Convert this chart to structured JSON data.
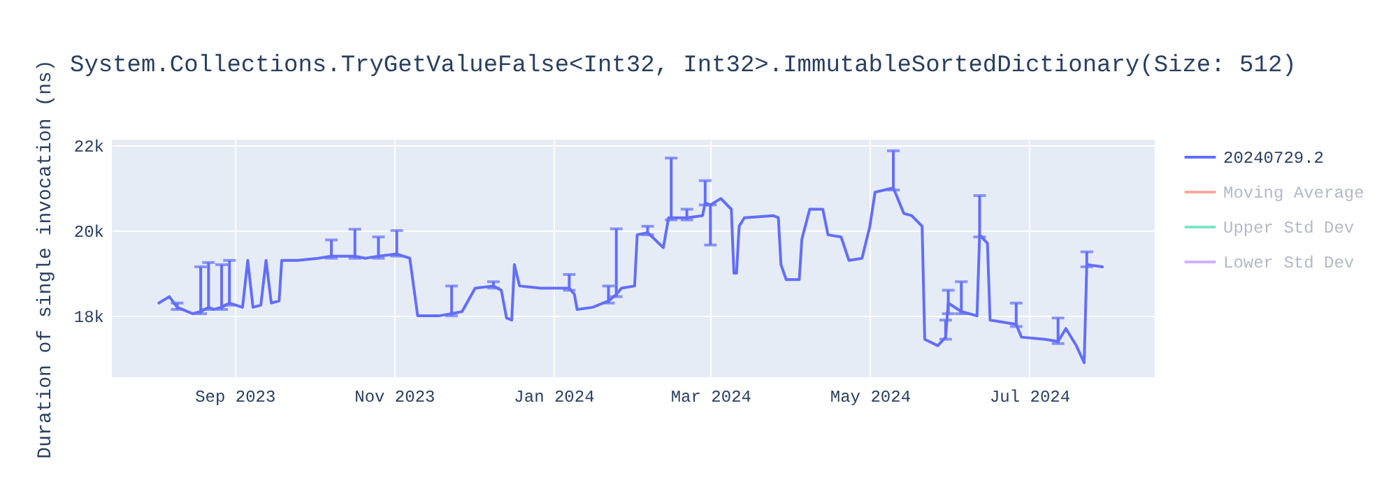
{
  "chart_data": {
    "type": "line",
    "title": "System.Collections.TryGetValueFalse<Int32, Int32>.ImmutableSortedDictionary(Size: 512)",
    "ylabel": "Duration of single invocation (ns)",
    "x": [
      "2023-08-03",
      "2023-08-07",
      "2023-08-10",
      "2023-08-16",
      "2023-08-19",
      "2023-08-22",
      "2023-08-24",
      "2023-08-27",
      "2023-08-30",
      "2023-09-04",
      "2023-09-06",
      "2023-09-08",
      "2023-09-11",
      "2023-09-13",
      "2023-09-15",
      "2023-09-18",
      "2023-09-19",
      "2023-09-25",
      "2023-10-03",
      "2023-10-08",
      "2023-10-11",
      "2023-10-17",
      "2023-10-21",
      "2023-10-26",
      "2023-11-02",
      "2023-11-07",
      "2023-11-10",
      "2023-11-18",
      "2023-11-23",
      "2023-11-27",
      "2023-12-02",
      "2023-12-09",
      "2023-12-12",
      "2023-12-14",
      "2023-12-16",
      "2023-12-17",
      "2023-12-19",
      "2023-12-27",
      "2024-01-03",
      "2024-01-07",
      "2024-01-09",
      "2024-01-10",
      "2024-01-16",
      "2024-01-22",
      "2024-01-25",
      "2024-01-27",
      "2024-02-01",
      "2024-02-02",
      "2024-02-06",
      "2024-02-12",
      "2024-02-14",
      "2024-02-15",
      "2024-02-21",
      "2024-02-27",
      "2024-02-28",
      "2024-03-01",
      "2024-03-05",
      "2024-03-09",
      "2024-03-10",
      "2024-03-11",
      "2024-03-12",
      "2024-03-14",
      "2024-03-25",
      "2024-03-27",
      "2024-03-28",
      "2024-03-30",
      "2024-04-04",
      "2024-04-05",
      "2024-04-08",
      "2024-04-13",
      "2024-04-15",
      "2024-04-20",
      "2024-04-23",
      "2024-04-28",
      "2024-05-01",
      "2024-05-03",
      "2024-05-10",
      "2024-05-14",
      "2024-05-17",
      "2024-05-21",
      "2024-05-22",
      "2024-05-27",
      "2024-05-30",
      "2024-05-31",
      "2024-06-05",
      "2024-06-11",
      "2024-06-12",
      "2024-06-15",
      "2024-06-16",
      "2024-06-21",
      "2024-06-26",
      "2024-06-28",
      "2024-07-07",
      "2024-07-12",
      "2024-07-15",
      "2024-07-19",
      "2024-07-22",
      "2024-07-23",
      "2024-07-29"
    ],
    "series": [
      {
        "name": "20240729.2",
        "color": "#636efa",
        "values": [
          18300,
          18450,
          18200,
          18050,
          18100,
          18200,
          18150,
          18200,
          18300,
          18200,
          19300,
          18200,
          18250,
          19300,
          18300,
          18350,
          19300,
          19300,
          19350,
          19400,
          19400,
          19400,
          19350,
          19400,
          19450,
          19350,
          18000,
          18000,
          18050,
          18100,
          18650,
          18700,
          18600,
          17950,
          17900,
          19200,
          18700,
          18650,
          18650,
          18650,
          18500,
          18150,
          18200,
          18350,
          18500,
          18650,
          18700,
          19900,
          19950,
          19600,
          20300,
          20300,
          20300,
          20350,
          20650,
          20600,
          20750,
          20500,
          19000,
          19000,
          20100,
          20300,
          20350,
          20300,
          19200,
          18850,
          18850,
          19800,
          20500,
          20500,
          19900,
          19850,
          19300,
          19350,
          20100,
          20900,
          21000,
          20400,
          20350,
          20100,
          17450,
          17300,
          17500,
          18300,
          18100,
          18000,
          19900,
          19700,
          17900,
          17850,
          17800,
          17500,
          17450,
          17400,
          17700,
          17300,
          16900,
          19200,
          19150
        ],
        "errors": [
          null,
          null,
          [
            18150,
            18300
          ],
          null,
          [
            18050,
            19150
          ],
          [
            18150,
            19250
          ],
          null,
          [
            18150,
            19200
          ],
          [
            18250,
            19300
          ],
          null,
          null,
          null,
          null,
          null,
          null,
          null,
          null,
          null,
          null,
          [
            19350,
            19780
          ],
          null,
          [
            19350,
            20030
          ],
          null,
          [
            19350,
            19850
          ],
          [
            19400,
            20000
          ],
          null,
          null,
          null,
          [
            18000,
            18700
          ],
          null,
          null,
          [
            18650,
            18800
          ],
          null,
          null,
          null,
          null,
          null,
          null,
          null,
          [
            18600,
            18970
          ],
          null,
          null,
          null,
          [
            18300,
            18700
          ],
          [
            18450,
            20040
          ],
          null,
          null,
          null,
          [
            19900,
            20100
          ],
          null,
          null,
          [
            20250,
            21700
          ],
          [
            20250,
            20500
          ],
          null,
          [
            20600,
            21170
          ],
          [
            19660,
            20600
          ],
          null,
          null,
          null,
          null,
          null,
          null,
          null,
          null,
          null,
          null,
          null,
          null,
          null,
          null,
          null,
          null,
          null,
          null,
          null,
          null,
          [
            20950,
            21870
          ],
          null,
          null,
          null,
          null,
          null,
          [
            17450,
            17900
          ],
          [
            18050,
            18600
          ],
          [
            18050,
            18800
          ],
          null,
          [
            19850,
            20820
          ],
          null,
          null,
          null,
          [
            17750,
            18300
          ],
          null,
          null,
          [
            17350,
            17950
          ],
          null,
          null,
          null,
          [
            19150,
            19500
          ],
          null
        ]
      },
      {
        "name": "Moving Average",
        "color": "#ef553b",
        "values": [
          null,
          null,
          null,
          null,
          null,
          null,
          null,
          null,
          null,
          null,
          null,
          null,
          null,
          null,
          null,
          null,
          null,
          null,
          null,
          null,
          null,
          null,
          null,
          null,
          null,
          null,
          null,
          null,
          null,
          null,
          null,
          null,
          null,
          null,
          null,
          null,
          null,
          null,
          null,
          null,
          null,
          null,
          null,
          null,
          null,
          null,
          null,
          null,
          null,
          null,
          null,
          null,
          null,
          null,
          null,
          null,
          null,
          null,
          null,
          null,
          null,
          null,
          null,
          null,
          null,
          null,
          null,
          null,
          null,
          null,
          null,
          null,
          null,
          null,
          null,
          null,
          null,
          null,
          null,
          null,
          null,
          null,
          null,
          null,
          null,
          null,
          null,
          null,
          null,
          null,
          null,
          null,
          null,
          null,
          null,
          null,
          null,
          null,
          null
        ]
      },
      {
        "name": "Upper Std Dev",
        "color": "#00cc96",
        "values": [
          null,
          null,
          null,
          null,
          null,
          null,
          null,
          null,
          null,
          null,
          null,
          null,
          null,
          null,
          null,
          null,
          null,
          null,
          null,
          null,
          null,
          null,
          null,
          null,
          null,
          null,
          null,
          null,
          null,
          null,
          null,
          null,
          null,
          null,
          null,
          null,
          null,
          null,
          null,
          null,
          null,
          null,
          null,
          null,
          null,
          null,
          null,
          null,
          null,
          null,
          null,
          null,
          null,
          null,
          null,
          null,
          null,
          null,
          null,
          null,
          null,
          null,
          null,
          null,
          null,
          null,
          null,
          null,
          null,
          null,
          null,
          null,
          null,
          null,
          null,
          null,
          null,
          null,
          null,
          null,
          null,
          null,
          null,
          null,
          null,
          null,
          null,
          null,
          null,
          null,
          null,
          null,
          null,
          null,
          null,
          null,
          null,
          null,
          null
        ]
      },
      {
        "name": "Lower Std Dev",
        "color": "#ab63fa",
        "values": [
          null,
          null,
          null,
          null,
          null,
          null,
          null,
          null,
          null,
          null,
          null,
          null,
          null,
          null,
          null,
          null,
          null,
          null,
          null,
          null,
          null,
          null,
          null,
          null,
          null,
          null,
          null,
          null,
          null,
          null,
          null,
          null,
          null,
          null,
          null,
          null,
          null,
          null,
          null,
          null,
          null,
          null,
          null,
          null,
          null,
          null,
          null,
          null,
          null,
          null,
          null,
          null,
          null,
          null,
          null,
          null,
          null,
          null,
          null,
          null,
          null,
          null,
          null,
          null,
          null,
          null,
          null,
          null,
          null,
          null,
          null,
          null,
          null,
          null,
          null,
          null,
          null,
          null,
          null,
          null,
          null,
          null,
          null,
          null,
          null,
          null,
          null,
          null,
          null,
          null,
          null,
          null,
          null,
          null,
          null,
          null,
          null,
          null,
          null
        ]
      }
    ],
    "xlim": [
      "2023-07-16",
      "2024-08-18"
    ],
    "xticks": [
      {
        "value": "2023-09-01",
        "label": "Sep 2023"
      },
      {
        "value": "2023-11-01",
        "label": "Nov 2023"
      },
      {
        "value": "2024-01-01",
        "label": "Jan 2024"
      },
      {
        "value": "2024-03-01",
        "label": "Mar 2024"
      },
      {
        "value": "2024-05-01",
        "label": "May 2024"
      },
      {
        "value": "2024-07-01",
        "label": "Jul 2024"
      }
    ],
    "ylim": [
      16560,
      22130
    ],
    "yticks": [
      {
        "value": 18000,
        "label": "18k"
      },
      {
        "value": 20000,
        "label": "20k"
      },
      {
        "value": 22000,
        "label": "22k"
      }
    ],
    "grid": true,
    "legend": "right",
    "line_style": "solid"
  }
}
